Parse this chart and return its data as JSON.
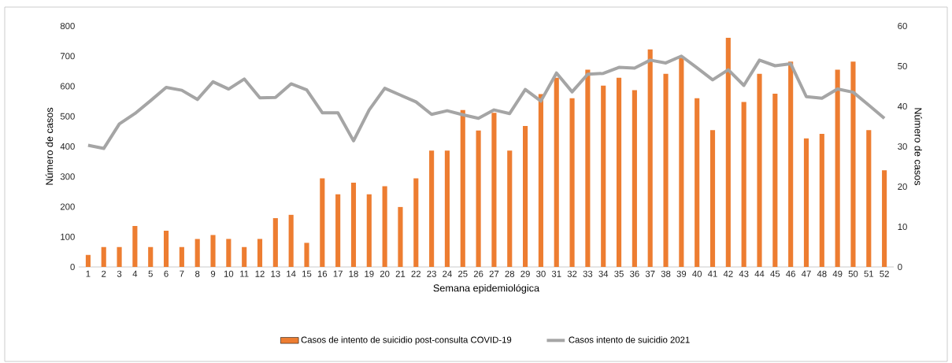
{
  "chart_data": {
    "type": "bar",
    "categories": [
      "1",
      "2",
      "3",
      "4",
      "5",
      "6",
      "7",
      "8",
      "9",
      "10",
      "11",
      "12",
      "13",
      "14",
      "15",
      "16",
      "17",
      "18",
      "19",
      "20",
      "21",
      "22",
      "23",
      "24",
      "25",
      "26",
      "27",
      "28",
      "29",
      "30",
      "31",
      "32",
      "33",
      "34",
      "35",
      "36",
      "37",
      "38",
      "39",
      "40",
      "41",
      "42",
      "43",
      "44",
      "45",
      "46",
      "47",
      "48",
      "49",
      "50",
      "51",
      "52"
    ],
    "series": [
      {
        "name": "Casos de intento de suicidio post-consulta COVID-19",
        "color": "#ed7d31",
        "values": [
          40,
          66,
          66,
          136,
          66,
          120,
          66,
          93,
          106,
          93,
          66,
          93,
          162,
          173,
          80,
          294,
          241,
          280,
          241,
          268,
          199,
          294,
          386,
          386,
          521,
          453,
          512,
          386,
          468,
          574,
          628,
          560,
          655,
          602,
          628,
          587,
          722,
          641,
          694,
          560,
          454,
          761,
          548,
          641,
          575,
          682,
          427,
          442,
          655,
          682,
          454,
          321
        ]
      },
      {
        "name": "Casos intento de suicidio 2021",
        "type": "line",
        "axis": "y2",
        "color": "#a5a5a5",
        "values": [
          30.3,
          29.5,
          35.6,
          38.2,
          41.4,
          44.7,
          44.0,
          41.7,
          46.1,
          44.3,
          46.8,
          42.1,
          42.2,
          45.6,
          44.1,
          38.4,
          38.4,
          31.4,
          39.1,
          44.5,
          42.8,
          41.1,
          38.0,
          38.9,
          37.9,
          37.0,
          39.1,
          38.2,
          44.2,
          41.3,
          48.3,
          43.6,
          48.0,
          48.2,
          49.7,
          49.5,
          51.5,
          50.8,
          52.5,
          49.6,
          46.6,
          49.1,
          45.2,
          51.5,
          50.1,
          50.6,
          42.4,
          42.0,
          44.3,
          43.5,
          40.3,
          37.0
        ]
      }
    ],
    "xlabel": "Semana epidemiológica",
    "ylabel": "Número de casos",
    "y2label": "Número de casos",
    "ylim": [
      0,
      800
    ],
    "yticks": [
      0,
      100,
      200,
      300,
      400,
      500,
      600,
      700,
      800
    ],
    "y2lim": [
      0,
      60
    ],
    "y2ticks": [
      0,
      10,
      20,
      30,
      40,
      50,
      60
    ],
    "legend": "bottom",
    "marker": "none"
  }
}
